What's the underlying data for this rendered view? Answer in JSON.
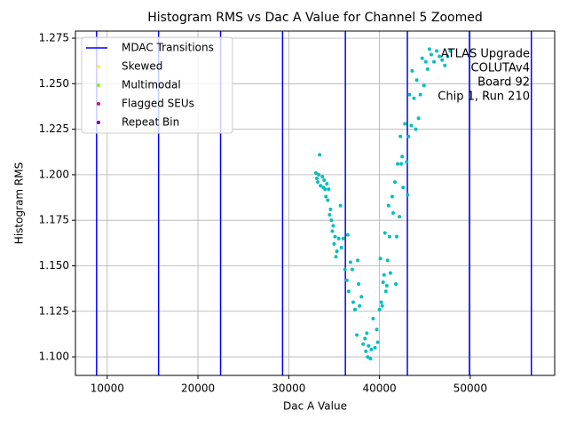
{
  "chart_data": {
    "type": "scatter",
    "title": "Histogram RMS vs Dac A Value for Channel 5 Zoomed",
    "xlabel": "Dac A Value",
    "ylabel": "Histogram RMS",
    "xlim": [
      6500,
      59300
    ],
    "ylim": [
      1.0898,
      1.2789
    ],
    "xticks": [
      10000,
      20000,
      30000,
      40000,
      50000
    ],
    "yticks": [
      {
        "value": 1.1,
        "label": "1.100"
      },
      1.125,
      {
        "value": 1.15,
        "label": "1.150"
      },
      1.175,
      {
        "value": 1.2,
        "label": "1.200"
      },
      1.225,
      {
        "value": 1.25,
        "label": "1.250"
      },
      1.275
    ],
    "grid": true,
    "legend": "upper left",
    "transitions": {
      "name": "MDAC Transitions",
      "color": "#0000ff",
      "x": [
        8830,
        15660,
        22490,
        29320,
        36240,
        43070,
        49900,
        56730
      ]
    },
    "series": [
      {
        "name": "Skewed",
        "color": "#ffff00",
        "x": [],
        "values": []
      },
      {
        "name": "Multimodal",
        "color": "#7fff00",
        "x": [],
        "values": []
      },
      {
        "name": "Flagged SEUs",
        "color": "#dc143c",
        "x": [],
        "values": []
      },
      {
        "name": "Repeat Bin",
        "color": "#800080",
        "x": [],
        "values": []
      }
    ],
    "points": {
      "color": "#00bfbf",
      "x": [
        33000,
        33100,
        33200,
        33300,
        33400,
        33500,
        33700,
        33800,
        33900,
        34000,
        34100,
        34200,
        34300,
        34400,
        34500,
        34600,
        34700,
        34800,
        34900,
        35000,
        35100,
        35200,
        35300,
        35500,
        35700,
        35800,
        36000,
        36200,
        36400,
        36500,
        36600,
        36800,
        37000,
        37100,
        37300,
        37500,
        37600,
        37700,
        37800,
        38000,
        38200,
        38400,
        38500,
        38600,
        38700,
        38800,
        39000,
        39100,
        39300,
        39500,
        39700,
        39800,
        40000,
        40100,
        40200,
        40300,
        40400,
        40500,
        40600,
        40700,
        40800,
        40900,
        41000,
        41100,
        41200,
        41400,
        41500,
        41700,
        41800,
        41900,
        42000,
        42200,
        42300,
        42400,
        42500,
        42600,
        42800,
        43000,
        43100,
        43200,
        43300,
        43500,
        43600,
        43800,
        44000,
        44100,
        44300,
        44500,
        44700,
        44900,
        45100,
        45300,
        45500,
        45700,
        46000,
        46300,
        46600,
        46900,
        47200,
        47500,
        47800
      ],
      "values": [
        1.201,
        1.198,
        1.196,
        1.2,
        1.211,
        1.194,
        1.199,
        1.193,
        1.197,
        1.192,
        1.188,
        1.195,
        1.186,
        1.192,
        1.178,
        1.181,
        1.175,
        1.169,
        1.172,
        1.162,
        1.166,
        1.155,
        1.158,
        1.165,
        1.183,
        1.16,
        1.165,
        1.148,
        1.142,
        1.167,
        1.136,
        1.152,
        1.148,
        1.13,
        1.126,
        1.112,
        1.153,
        1.14,
        1.128,
        1.133,
        1.107,
        1.11,
        1.103,
        1.113,
        1.1,
        1.106,
        1.099,
        1.104,
        1.121,
        1.105,
        1.115,
        1.108,
        1.126,
        1.154,
        1.13,
        1.128,
        1.141,
        1.145,
        1.168,
        1.136,
        1.139,
        1.153,
        1.183,
        1.166,
        1.146,
        1.188,
        1.179,
        1.196,
        1.14,
        1.166,
        1.206,
        1.177,
        1.221,
        1.206,
        1.21,
        1.193,
        1.228,
        1.207,
        1.189,
        1.221,
        1.244,
        1.227,
        1.257,
        1.242,
        1.225,
        1.252,
        1.231,
        1.244,
        1.264,
        1.249,
        1.262,
        1.258,
        1.269,
        1.266,
        1.262,
        1.268,
        1.265,
        1.263,
        1.26,
        1.265,
        1.268
      ]
    },
    "annotation": [
      "ATLAS Upgrade",
      "COLUTAv4",
      "Board 92",
      "Chip 1, Run 210"
    ]
  }
}
